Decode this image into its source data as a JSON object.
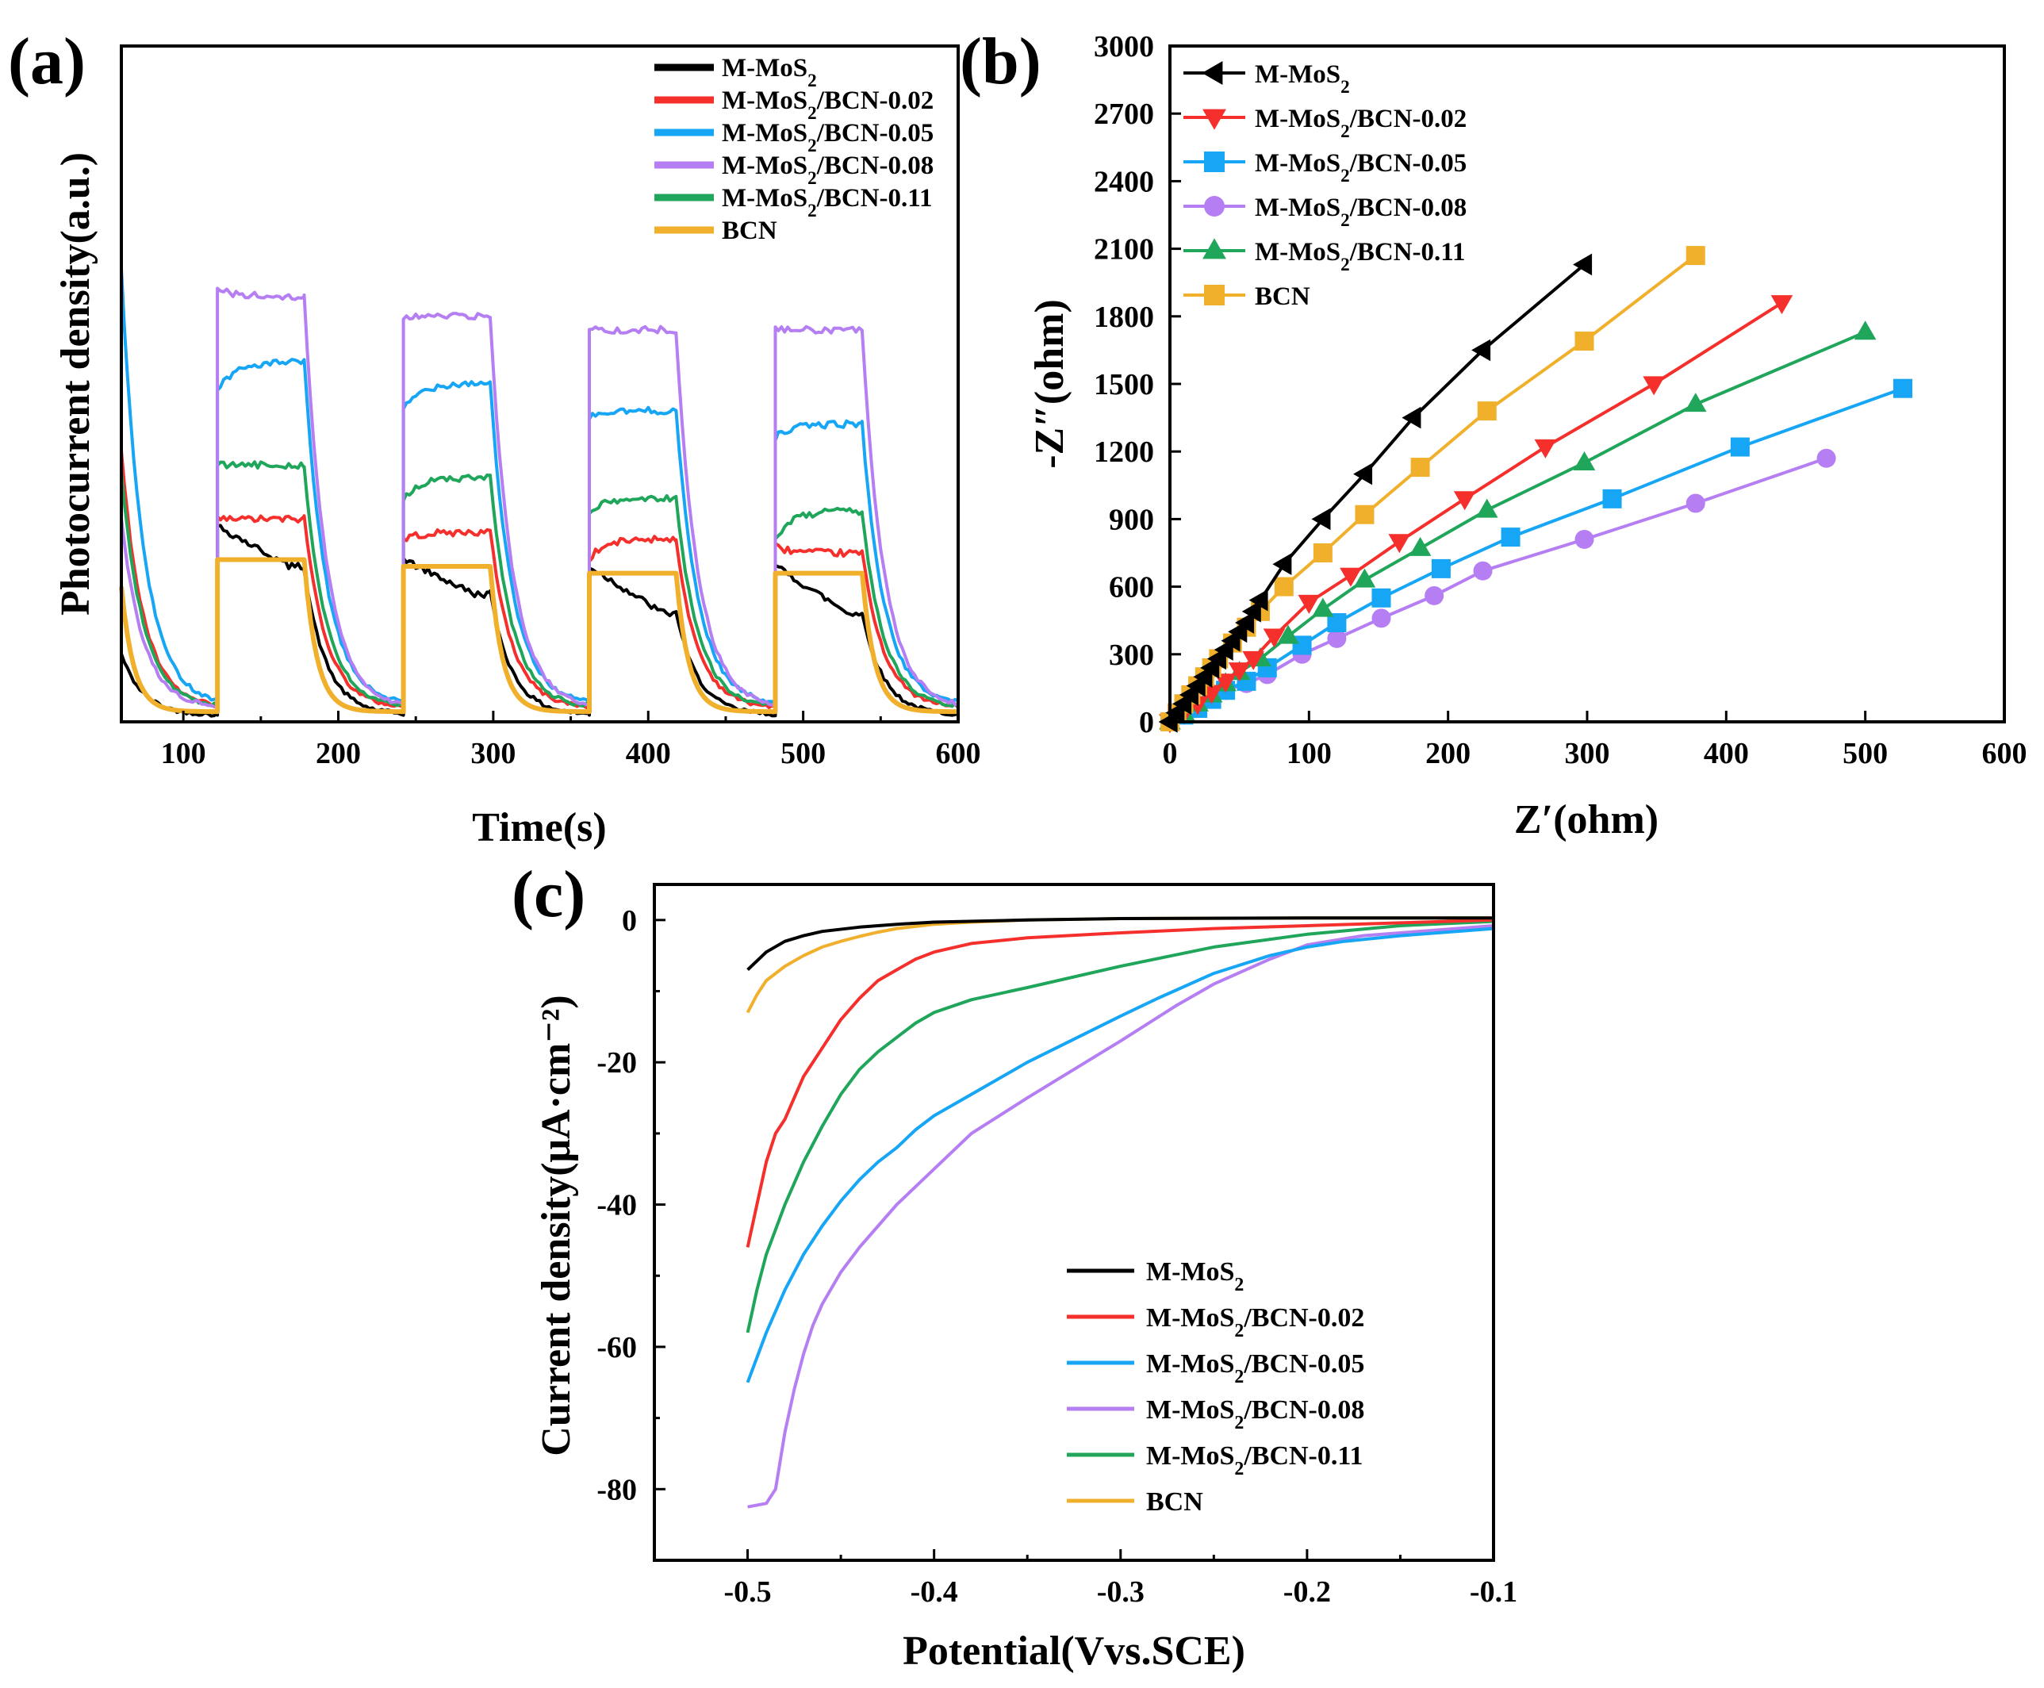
{
  "series_colors": {
    "M-MoS2": "#000000",
    "M-MoS2/BCN-0.02": "#f5302c",
    "M-MoS2/BCN-0.05": "#16a6f5",
    "M-MoS2/BCN-0.08": "#b57ef2",
    "M-MoS2/BCN-0.11": "#1fa65a",
    "BCN": "#f0b02c"
  },
  "chart_data": [
    {
      "panel": "(a)",
      "type": "line",
      "xlabel": "Time(s)",
      "ylabel": "Photocurrent density(a.u.)",
      "xlim": [
        60,
        600
      ],
      "ylim": [
        0,
        1
      ],
      "xticks": [
        100,
        200,
        300,
        400,
        500,
        600
      ],
      "legend_position": "top-right",
      "light_cycles_on_off_s": [
        [
          122,
          178
        ],
        [
          242,
          298
        ],
        [
          362,
          418
        ],
        [
          482,
          538
        ]
      ],
      "series": [
        {
          "name": "M-MoS2",
          "legend_label": "M-MoS",
          "sub": "2",
          "suffix": "",
          "dark": 0.01,
          "on_levels": [
            0.23,
            0.19,
            0.16,
            0.16
          ],
          "on_start": [
            0.23,
            0.18,
            0.17,
            0.17
          ],
          "initial_spike": 0.1
        },
        {
          "name": "M-MoS2/BCN-0.02",
          "legend_label": "M-MoS",
          "sub": "2",
          "suffix": "/BCN-0.02",
          "dark": 0.02,
          "on_levels": [
            0.3,
            0.28,
            0.27,
            0.25
          ],
          "on_start": [
            0.3,
            0.27,
            0.24,
            0.26
          ],
          "initial_spike": 0.4
        },
        {
          "name": "M-MoS2/BCN-0.05",
          "legend_label": "M-MoS",
          "sub": "2",
          "suffix": "/BCN-0.05",
          "dark": 0.025,
          "on_levels": [
            0.53,
            0.5,
            0.46,
            0.44
          ],
          "on_start": [
            0.49,
            0.46,
            0.45,
            0.42
          ],
          "initial_spike": 0.67
        },
        {
          "name": "M-MoS2/BCN-0.08",
          "legend_label": "M-MoS",
          "sub": "2",
          "suffix": "/BCN-0.08",
          "dark": 0.02,
          "on_levels": [
            0.63,
            0.6,
            0.58,
            0.58
          ],
          "on_start": [
            0.64,
            0.6,
            0.58,
            0.58
          ],
          "initial_spike": 0.3
        },
        {
          "name": "M-MoS2/BCN-0.11",
          "legend_label": "M-MoS",
          "sub": "2",
          "suffix": "/BCN-0.11",
          "dark": 0.02,
          "on_levels": [
            0.38,
            0.36,
            0.33,
            0.31
          ],
          "on_start": [
            0.38,
            0.33,
            0.31,
            0.27
          ],
          "initial_spike": 0.37
        },
        {
          "name": "BCN",
          "legend_label": "BCN",
          "sub": "",
          "suffix": "",
          "dark": 0.015,
          "on_levels": [
            0.24,
            0.23,
            0.22,
            0.22
          ],
          "on_start": [
            0.24,
            0.23,
            0.22,
            0.22
          ],
          "initial_spike": 0.2
        }
      ]
    },
    {
      "panel": "(b)",
      "type": "line",
      "marker_line": true,
      "xlabel": "Z′(ohm)",
      "ylabel": "-Z″(ohm)",
      "xlim": [
        0,
        600
      ],
      "ylim": [
        0,
        3000
      ],
      "xticks": [
        0,
        100,
        200,
        300,
        400,
        500,
        600
      ],
      "yticks": [
        0,
        300,
        600,
        900,
        1200,
        1500,
        1800,
        2100,
        2400,
        2700,
        3000
      ],
      "legend_position": "top-left",
      "series": [
        {
          "name": "M-MoS2",
          "legend_label": "M-MoS",
          "sub": "2",
          "suffix": "",
          "marker": "triangle-left",
          "x": [
            0,
            5,
            10,
            15,
            20,
            25,
            30,
            35,
            40,
            45,
            50,
            55,
            60,
            65,
            82,
            110,
            140,
            175,
            225,
            298
          ],
          "y": [
            0,
            40,
            80,
            120,
            160,
            200,
            240,
            280,
            320,
            360,
            400,
            440,
            490,
            540,
            700,
            900,
            1100,
            1350,
            1650,
            2030
          ]
        },
        {
          "name": "M-MoS2/BCN-0.02",
          "legend_label": "M-MoS",
          "sub": "2",
          "suffix": "/BCN-0.02",
          "marker": "triangle-down",
          "x": [
            0,
            10,
            20,
            30,
            40,
            50,
            60,
            75,
            100,
            130,
            165,
            212,
            270,
            348,
            440
          ],
          "y": [
            0,
            40,
            80,
            130,
            180,
            230,
            280,
            380,
            530,
            650,
            800,
            990,
            1220,
            1500,
            1860
          ]
        },
        {
          "name": "M-MoS2/BCN-0.05",
          "legend_label": "M-MoS",
          "sub": "2",
          "suffix": "/BCN-0.05",
          "marker": "square",
          "x": [
            0,
            10,
            20,
            30,
            40,
            55,
            70,
            95,
            120,
            152,
            195,
            245,
            318,
            410,
            527
          ],
          "y": [
            0,
            30,
            60,
            100,
            140,
            180,
            240,
            340,
            440,
            550,
            680,
            820,
            990,
            1220,
            1480
          ]
        },
        {
          "name": "M-MoS2/BCN-0.08",
          "legend_label": "M-MoS",
          "sub": "2",
          "suffix": "/BCN-0.08",
          "marker": "circle",
          "x": [
            0,
            10,
            20,
            30,
            40,
            55,
            70,
            95,
            120,
            152,
            190,
            225,
            298,
            378,
            472
          ],
          "y": [
            0,
            30,
            60,
            100,
            140,
            170,
            210,
            300,
            370,
            460,
            560,
            670,
            810,
            970,
            1170
          ]
        },
        {
          "name": "M-MoS2/BCN-0.11",
          "legend_label": "M-MoS",
          "sub": "2",
          "suffix": "/BCN-0.11",
          "marker": "triangle-up",
          "x": [
            0,
            10,
            20,
            30,
            40,
            50,
            65,
            85,
            110,
            140,
            180,
            228,
            298,
            378,
            500
          ],
          "y": [
            0,
            40,
            80,
            120,
            170,
            220,
            280,
            380,
            500,
            630,
            770,
            940,
            1150,
            1410,
            1730
          ]
        },
        {
          "name": "BCN",
          "legend_label": "BCN",
          "sub": "",
          "suffix": "",
          "marker": "square",
          "x": [
            0,
            5,
            10,
            15,
            20,
            25,
            30,
            35,
            45,
            55,
            65,
            82,
            110,
            140,
            180,
            228,
            298,
            378
          ],
          "y": [
            0,
            40,
            80,
            120,
            160,
            200,
            240,
            280,
            350,
            420,
            490,
            600,
            750,
            920,
            1130,
            1380,
            1690,
            2070
          ]
        }
      ]
    },
    {
      "panel": "(c)",
      "type": "line",
      "xlabel": "Potential(Vvs.SCE)",
      "ylabel": "Current density(μA·cm⁻²)",
      "xlim": [
        -0.55,
        -0.1
      ],
      "ylim": [
        -90,
        5
      ],
      "xticks": [
        -0.5,
        -0.4,
        -0.3,
        -0.2,
        -0.1
      ],
      "yticks": [
        0,
        -20,
        -40,
        -60,
        -80
      ],
      "legend_position": "bottom-center",
      "series": [
        {
          "name": "M-MoS2",
          "legend_label": "M-MoS",
          "sub": "2",
          "suffix": "",
          "x": [
            -0.5,
            -0.49,
            -0.48,
            -0.47,
            -0.46,
            -0.44,
            -0.42,
            -0.4,
            -0.35,
            -0.3,
            -0.2,
            -0.1
          ],
          "y": [
            -7,
            -4.5,
            -3,
            -2.2,
            -1.6,
            -1,
            -0.6,
            -0.3,
            0,
            0.2,
            0.3,
            0.3
          ]
        },
        {
          "name": "M-MoS2/BCN-0.02",
          "legend_label": "M-MoS",
          "sub": "2",
          "suffix": "/BCN-0.02",
          "x": [
            -0.5,
            -0.495,
            -0.49,
            -0.485,
            -0.48,
            -0.475,
            -0.47,
            -0.46,
            -0.45,
            -0.44,
            -0.43,
            -0.42,
            -0.41,
            -0.4,
            -0.38,
            -0.35,
            -0.3,
            -0.25,
            -0.2,
            -0.15,
            -0.1
          ],
          "y": [
            -46,
            -40,
            -34,
            -30,
            -28,
            -25,
            -22,
            -18,
            -14,
            -11,
            -8.5,
            -7,
            -5.5,
            -4.5,
            -3.3,
            -2.5,
            -1.8,
            -1.2,
            -0.8,
            -0.4,
            0
          ]
        },
        {
          "name": "M-MoS2/BCN-0.05",
          "legend_label": "M-MoS",
          "sub": "2",
          "suffix": "/BCN-0.05",
          "x": [
            -0.5,
            -0.49,
            -0.48,
            -0.47,
            -0.46,
            -0.45,
            -0.44,
            -0.43,
            -0.42,
            -0.41,
            -0.4,
            -0.38,
            -0.35,
            -0.3,
            -0.28,
            -0.25,
            -0.22,
            -0.2,
            -0.18,
            -0.15,
            -0.12,
            -0.1
          ],
          "y": [
            -65,
            -58,
            -52,
            -47,
            -43,
            -39.5,
            -36.5,
            -34,
            -32,
            -29.5,
            -27.5,
            -24.5,
            -20,
            -13.5,
            -11,
            -7.5,
            -5,
            -3.8,
            -3,
            -2.2,
            -1.6,
            -1.2
          ]
        },
        {
          "name": "M-MoS2/BCN-0.08",
          "legend_label": "M-MoS",
          "sub": "2",
          "suffix": "/BCN-0.08",
          "x": [
            -0.5,
            -0.49,
            -0.485,
            -0.48,
            -0.475,
            -0.47,
            -0.465,
            -0.46,
            -0.45,
            -0.44,
            -0.43,
            -0.42,
            -0.4,
            -0.38,
            -0.35,
            -0.3,
            -0.27,
            -0.25,
            -0.22,
            -0.2,
            -0.17,
            -0.15,
            -0.12,
            -0.1
          ],
          "y": [
            -82.5,
            -82,
            -80,
            -72,
            -66,
            -61,
            -57,
            -54,
            -49.5,
            -46,
            -43,
            -40,
            -35,
            -30,
            -25,
            -17,
            -12,
            -9,
            -5.5,
            -3.5,
            -2.2,
            -1.8,
            -1.2,
            -0.8
          ]
        },
        {
          "name": "M-MoS2/BCN-0.11",
          "legend_label": "M-MoS",
          "sub": "2",
          "suffix": "/BCN-0.11",
          "x": [
            -0.5,
            -0.495,
            -0.49,
            -0.48,
            -0.47,
            -0.46,
            -0.45,
            -0.44,
            -0.43,
            -0.42,
            -0.41,
            -0.4,
            -0.38,
            -0.35,
            -0.3,
            -0.25,
            -0.2,
            -0.15,
            -0.1
          ],
          "y": [
            -58,
            -52,
            -47,
            -40,
            -34,
            -29,
            -24.5,
            -21,
            -18.5,
            -16.5,
            -14.5,
            -13,
            -11.2,
            -9.5,
            -6.5,
            -3.8,
            -2,
            -0.8,
            -0.2
          ]
        },
        {
          "name": "BCN",
          "legend_label": "BCN",
          "sub": "",
          "suffix": "",
          "x": [
            -0.5,
            -0.495,
            -0.49,
            -0.48,
            -0.47,
            -0.46,
            -0.45,
            -0.44,
            -0.43,
            -0.42,
            -0.4,
            -0.38,
            -0.35,
            -0.3,
            -0.2,
            -0.1
          ],
          "y": [
            -13,
            -10.5,
            -8.5,
            -6.5,
            -5,
            -3.8,
            -3,
            -2.3,
            -1.7,
            -1.2,
            -0.6,
            -0.3,
            0,
            0.2,
            0.3,
            0.3
          ]
        }
      ]
    }
  ]
}
